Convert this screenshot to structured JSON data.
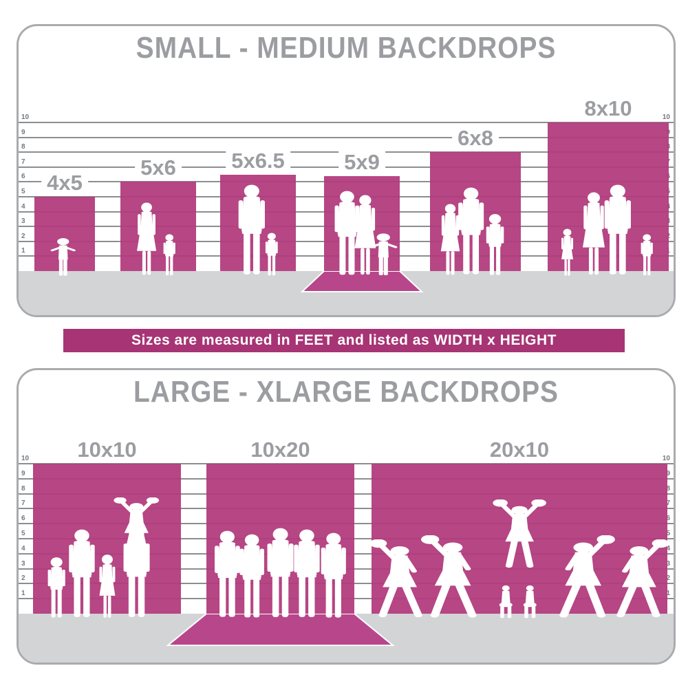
{
  "banner": {
    "text": "Sizes are measured in FEET and listed as WIDTH x HEIGHT"
  },
  "colors": {
    "magenta": "#b13a7c",
    "sweep": "#b7478a",
    "banner_bg": "#a73474",
    "title_gray": "#9b9da1",
    "tick_gray": "#75777a",
    "grid_gray": "#8b8d90",
    "floor_gray": "#d3d4d6",
    "panel_border": "#a9abae",
    "silhouette": "#ffffff",
    "background": "#ffffff"
  },
  "chart_data": [
    {
      "type": "bar",
      "title": "SMALL - MEDIUM BACKDROPS",
      "unit": "feet",
      "ylim": [
        0,
        10
      ],
      "axis_ticks": [
        1,
        2,
        3,
        4,
        5,
        6,
        7,
        8,
        9,
        10
      ],
      "legend": "none",
      "grid": true,
      "bars": [
        {
          "label": "4x5",
          "width_ft": 4,
          "height_ft": 5,
          "wall_ft": 5,
          "floor_sweep": false,
          "people": [
            {
              "pose": "toddler",
              "h_ft": 2.7,
              "x": 0.47
            }
          ]
        },
        {
          "label": "5x6",
          "width_ft": 5,
          "height_ft": 6,
          "wall_ft": 6,
          "floor_sweep": false,
          "people": [
            {
              "pose": "woman",
              "h_ft": 5.0,
              "x": 0.35
            },
            {
              "pose": "boy",
              "h_ft": 2.9,
              "x": 0.65
            }
          ]
        },
        {
          "label": "5x6.5",
          "width_ft": 5,
          "height_ft": 6.5,
          "wall_ft": 6.5,
          "floor_sweep": false,
          "people": [
            {
              "pose": "man",
              "h_ft": 6.2,
              "x": 0.42
            },
            {
              "pose": "boy",
              "h_ft": 3.0,
              "x": 0.68
            }
          ]
        },
        {
          "label": "5x9",
          "width_ft": 5,
          "height_ft": 9,
          "wall_ft": 6.4,
          "floor_sweep": true,
          "people": [
            {
              "pose": "man",
              "h_ft": 5.8,
              "x": 0.3
            },
            {
              "pose": "woman",
              "h_ft": 5.5,
              "x": 0.54
            },
            {
              "pose": "toddler",
              "h_ft": 3.0,
              "x": 0.78
            }
          ]
        },
        {
          "label": "6x8",
          "width_ft": 6,
          "height_ft": 8,
          "wall_ft": 8,
          "floor_sweep": false,
          "people": [
            {
              "pose": "woman",
              "h_ft": 4.9,
              "x": 0.22
            },
            {
              "pose": "man",
              "h_ft": 6.0,
              "x": 0.45
            },
            {
              "pose": "boy",
              "h_ft": 4.3,
              "x": 0.72
            }
          ]
        },
        {
          "label": "8x10",
          "width_ft": 8,
          "height_ft": 10,
          "wall_ft": 10,
          "floor_sweep": false,
          "people": [
            {
              "pose": "girl",
              "h_ft": 3.3,
              "x": 0.16
            },
            {
              "pose": "woman",
              "h_ft": 5.7,
              "x": 0.38
            },
            {
              "pose": "man",
              "h_ft": 6.2,
              "x": 0.58
            },
            {
              "pose": "boy",
              "h_ft": 2.9,
              "x": 0.82
            }
          ]
        }
      ]
    },
    {
      "type": "bar",
      "title": "LARGE - XLARGE BACKDROPS",
      "unit": "feet",
      "ylim": [
        0,
        10
      ],
      "axis_ticks": [
        1,
        2,
        3,
        4,
        5,
        6,
        7,
        8,
        9,
        10
      ],
      "legend": "none",
      "grid": true,
      "bars": [
        {
          "label": "10x10",
          "width_ft": 10,
          "height_ft": 10,
          "wall_ft": 10,
          "floor_sweep": false,
          "people": [
            {
              "pose": "boy",
              "h_ft": 4.2,
              "x": 0.16
            },
            {
              "pose": "man",
              "h_ft": 6.0,
              "x": 0.33
            },
            {
              "pose": "girl",
              "h_ft": 4.4,
              "x": 0.5
            },
            {
              "pose": "man",
              "h_ft": 6.1,
              "x": 0.7
            },
            {
              "pose": "flyer",
              "h_ft": 3.9,
              "x": 0.7,
              "lift_ft": 4.2
            }
          ]
        },
        {
          "label": "10x20",
          "width_ft": 10,
          "height_ft": 20,
          "wall_ft": 10,
          "floor_sweep": true,
          "people": [
            {
              "pose": "man",
              "h_ft": 5.9,
              "x": 0.14
            },
            {
              "pose": "man",
              "h_ft": 5.7,
              "x": 0.31
            },
            {
              "pose": "man",
              "h_ft": 6.1,
              "x": 0.5
            },
            {
              "pose": "man",
              "h_ft": 6.0,
              "x": 0.68
            },
            {
              "pose": "man",
              "h_ft": 5.8,
              "x": 0.86
            }
          ]
        },
        {
          "label": "20x10",
          "width_ft": 20,
          "height_ft": 10,
          "wall_ft": 10,
          "floor_sweep": false,
          "people": [
            {
              "pose": "cheer1",
              "h_ft": 5.3,
              "x": 0.09,
              "mirror": true
            },
            {
              "pose": "cheer1",
              "h_ft": 5.6,
              "x": 0.27,
              "mirror": true
            },
            {
              "pose": "kneel",
              "h_ft": 2.7,
              "x": 0.455
            },
            {
              "pose": "kneel",
              "h_ft": 2.7,
              "x": 0.535
            },
            {
              "pose": "flyer",
              "h_ft": 4.6,
              "x": 0.5,
              "lift_ft": 3.4
            },
            {
              "pose": "cheer1",
              "h_ft": 5.6,
              "x": 0.72
            },
            {
              "pose": "cheer1",
              "h_ft": 5.3,
              "x": 0.91
            }
          ]
        }
      ]
    }
  ]
}
